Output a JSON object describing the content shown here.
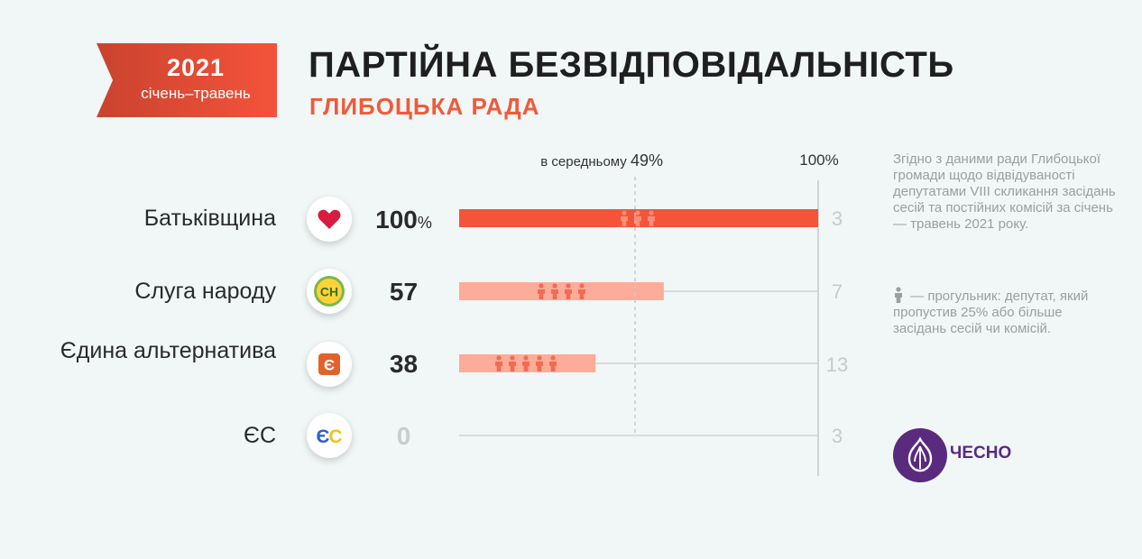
{
  "badge": {
    "year": "2021",
    "period": "січень–травень"
  },
  "title": "ПАРТІЙНА БЕЗВІДПОВІДАЛЬНІСТЬ",
  "subtitle": "ГЛИБОЦЬКА РАДА",
  "chart_data": {
    "type": "bar",
    "orientation": "horizontal",
    "unit": "%",
    "xlim": [
      0,
      100
    ],
    "average_label": "в середньому",
    "average": 49,
    "max_label": "100%",
    "categories": [
      "Батьківщина",
      "Слуга народу",
      "Єдина альтернатива",
      "ЄС"
    ],
    "values": [
      100,
      57,
      38,
      0
    ],
    "value_labels": [
      "100",
      "57",
      "38",
      "0"
    ],
    "value_suffix": "%",
    "truants": [
      3,
      4,
      5,
      0
    ],
    "deputies": [
      3,
      7,
      13,
      3
    ],
    "colors": [
      "#f5533a",
      "#fdac9a",
      "#fdac9a",
      "#fdac9a"
    ]
  },
  "logos": {
    "sn_text": "СН",
    "es_text_e": "Є",
    "es_text_s": "С",
    "ea_text": "Є"
  },
  "note": "Згідно з даними ради Глибоцької громади щодо відвідуваності депутатами VIII скликання засідань сесій та постійних комісій за січень — травень 2021 року.",
  "legend": "— прогульник: депутат, який пропустив 25% або більше засідань сесій чи комісій.",
  "brand": "ЧЕСНО",
  "colors": {
    "accent": "#f05a3a",
    "bar_strong": "#f5533a",
    "bar_light": "#fdac9a",
    "axis": "#cdd6d4",
    "brand": "#5a2a7e"
  }
}
